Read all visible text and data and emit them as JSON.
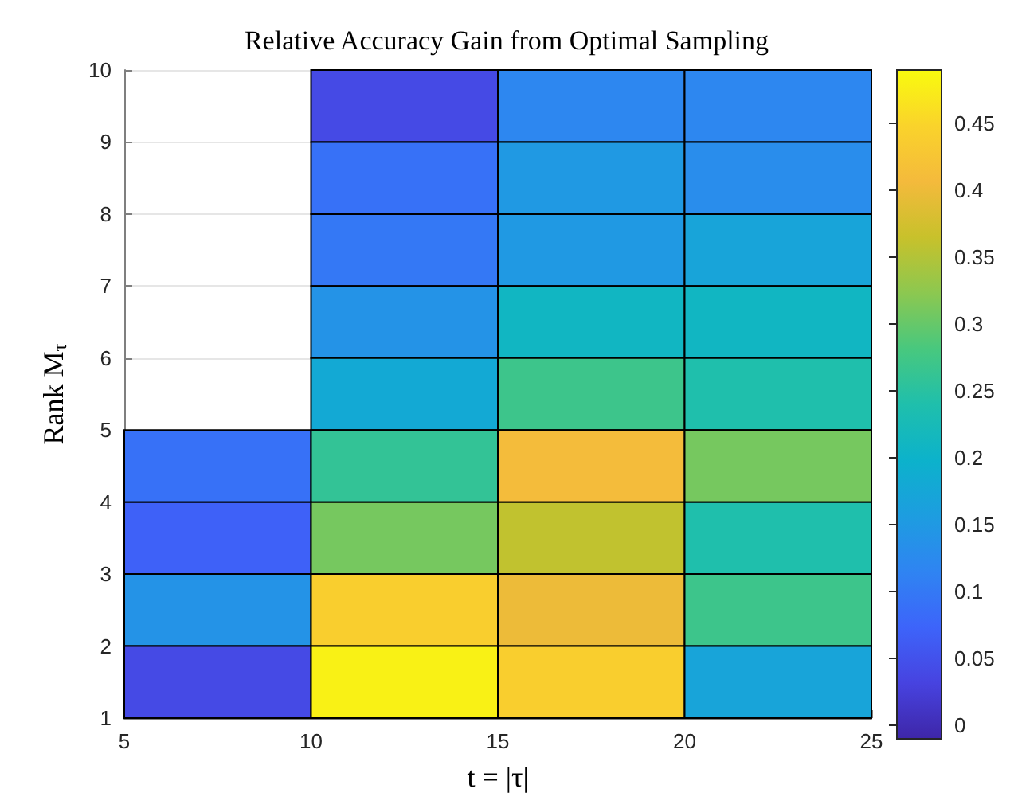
{
  "chart_data": {
    "type": "heatmap",
    "title": "Relative Accuracy Gain from Optimal Sampling",
    "xlabel": "t = |τ|",
    "ylabel": "Rank M$_{τ}$",
    "xlim": [
      5,
      25
    ],
    "xticks": [
      5,
      10,
      15,
      20,
      25
    ],
    "ylim": [
      1,
      10
    ],
    "yticks": [
      1,
      2,
      3,
      4,
      5,
      6,
      7,
      8,
      9,
      10
    ],
    "cells": [
      [
        null,
        0.04,
        0.12,
        0.12
      ],
      [
        null,
        0.09,
        0.15,
        0.13
      ],
      [
        null,
        0.1,
        0.15,
        0.17
      ],
      [
        null,
        0.14,
        0.21,
        0.21
      ],
      [
        null,
        0.18,
        0.27,
        0.24
      ],
      [
        0.09,
        0.26,
        0.41,
        0.31
      ],
      [
        0.07,
        0.31,
        0.36,
        0.24
      ],
      [
        0.14,
        0.44,
        0.4,
        0.27
      ],
      [
        0.04,
        0.48,
        0.44,
        0.17
      ]
    ],
    "clim": [
      -0.01,
      0.49
    ],
    "cticks": [
      0,
      0.05,
      0.1,
      0.15,
      0.2,
      0.25,
      0.3,
      0.35,
      0.4,
      0.45
    ],
    "grid": "y"
  }
}
